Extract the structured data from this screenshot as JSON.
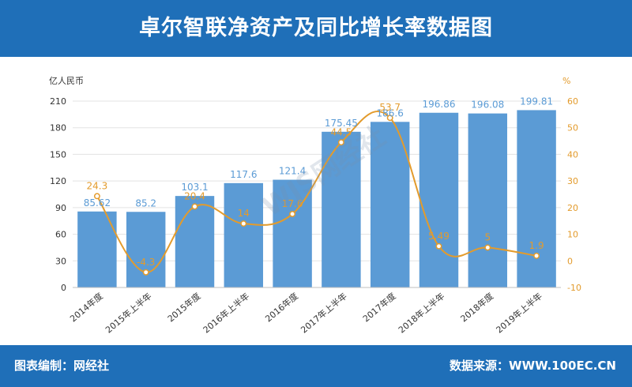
{
  "title": "卓尔智联净资产及同比增长率数据图",
  "footer": {
    "left": "图表编制：网经社",
    "right": "数据来源：WWW.100EC.CN"
  },
  "watermark": "WJS网经社",
  "colors": {
    "header": "#1f6fb8",
    "bar": "#5b9bd5",
    "line": "#e39b2c",
    "bar_label": "#5b9bd5",
    "line_label": "#e39b2c"
  },
  "chart_data": {
    "type": "bar",
    "categories": [
      "2014年度",
      "2015年上半年",
      "2015年度",
      "2016年上半年",
      "2016年度",
      "2017年上半年",
      "2017年度",
      "2018年上半年",
      "2018年度",
      "2019年上半年"
    ],
    "series": [
      {
        "type": "bar",
        "axis": "left",
        "values": [
          85.62,
          85.2,
          103.1,
          117.6,
          121.4,
          175.45,
          186.6,
          196.86,
          196.08,
          199.81
        ]
      },
      {
        "type": "line",
        "axis": "right",
        "values": [
          24.3,
          -4.3,
          20.4,
          14,
          17.6,
          44.5,
          53.7,
          5.49,
          5,
          1.9
        ]
      }
    ],
    "left_axis": {
      "label": "亿人民币",
      "min": 0,
      "max": 210,
      "ticks": [
        0,
        30,
        60,
        90,
        120,
        150,
        180,
        210
      ]
    },
    "right_axis": {
      "label": "%",
      "min": -10,
      "max": 60,
      "ticks": [
        -10,
        0,
        10,
        20,
        30,
        40,
        50,
        60
      ]
    },
    "grid": true,
    "legend": "none"
  }
}
